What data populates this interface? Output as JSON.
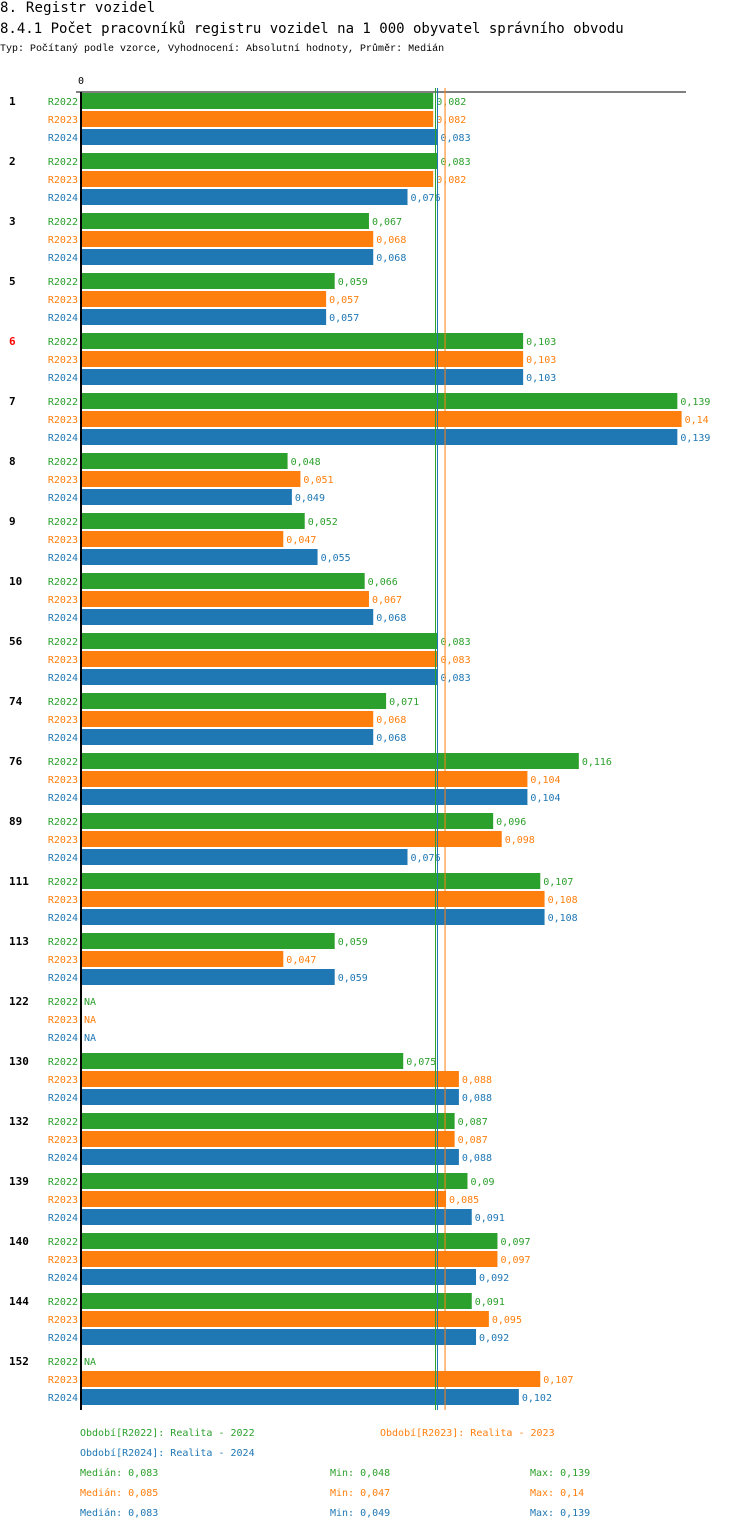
{
  "header": {
    "section": "8. Registr vozidel",
    "title": "8.4.1 Počet pracovníků registru vozidel na 1 000 obyvatel správního obvodu",
    "subtitle": "Typ: Počítaný podle vzorce, Vyhodnocení: Absolutní hodnoty, Průměr: Medián"
  },
  "chart_data": {
    "type": "bar",
    "orientation": "horizontal",
    "title": "8.4.1 Počet pracovníků registru vozidel na 1 000 obyvatel správního obvodu",
    "axis_zero_label": "0",
    "xlim": [
      0,
      0.14
    ],
    "colors": {
      "R2022": "#2ca02c",
      "R2023": "#ff7f0e",
      "R2024": "#1f77b4"
    },
    "series_names": [
      "R2022",
      "R2023",
      "R2024"
    ],
    "na_label": "NA",
    "decimal_separator": ",",
    "highlighted_category": "6",
    "highlight_color": "#ff0000",
    "categories": [
      "1",
      "2",
      "3",
      "5",
      "6",
      "7",
      "8",
      "9",
      "10",
      "56",
      "74",
      "76",
      "89",
      "111",
      "113",
      "122",
      "130",
      "132",
      "139",
      "140",
      "144",
      "152"
    ],
    "series": [
      {
        "name": "R2022",
        "values": [
          0.082,
          0.083,
          0.067,
          0.059,
          0.103,
          0.139,
          0.048,
          0.052,
          0.066,
          0.083,
          0.071,
          0.116,
          0.096,
          0.107,
          0.059,
          null,
          0.075,
          0.087,
          0.09,
          0.097,
          0.091,
          null
        ]
      },
      {
        "name": "R2023",
        "values": [
          0.082,
          0.082,
          0.068,
          0.057,
          0.103,
          0.14,
          0.051,
          0.047,
          0.067,
          0.083,
          0.068,
          0.104,
          0.098,
          0.108,
          0.047,
          null,
          0.088,
          0.087,
          0.085,
          0.097,
          0.095,
          0.107
        ]
      },
      {
        "name": "R2024",
        "values": [
          0.083,
          0.076,
          0.068,
          0.057,
          0.103,
          0.139,
          0.049,
          0.055,
          0.068,
          0.083,
          0.068,
          0.104,
          0.076,
          0.108,
          0.059,
          null,
          0.088,
          0.088,
          0.091,
          0.092,
          0.092,
          0.102
        ]
      }
    ],
    "medians": {
      "R2022": 0.083,
      "R2023": 0.085,
      "R2024": 0.083
    }
  },
  "legend": {
    "periods": [
      {
        "series": "R2022",
        "text": "Období[R2022]: Realita - 2022"
      },
      {
        "series": "R2023",
        "text": "Období[R2023]: Realita - 2023"
      },
      {
        "series": "R2024",
        "text": "Období[R2024]: Realita - 2024"
      }
    ],
    "stats": [
      {
        "series": "R2022",
        "median": "Medián: 0,083",
        "min": "Min: 0,048",
        "max": "Max: 0,139"
      },
      {
        "series": "R2023",
        "median": "Medián: 0,085",
        "min": "Min: 0,047",
        "max": "Max: 0,14"
      },
      {
        "series": "R2024",
        "median": "Medián: 0,083",
        "min": "Min: 0,049",
        "max": "Max: 0,139"
      }
    ]
  }
}
